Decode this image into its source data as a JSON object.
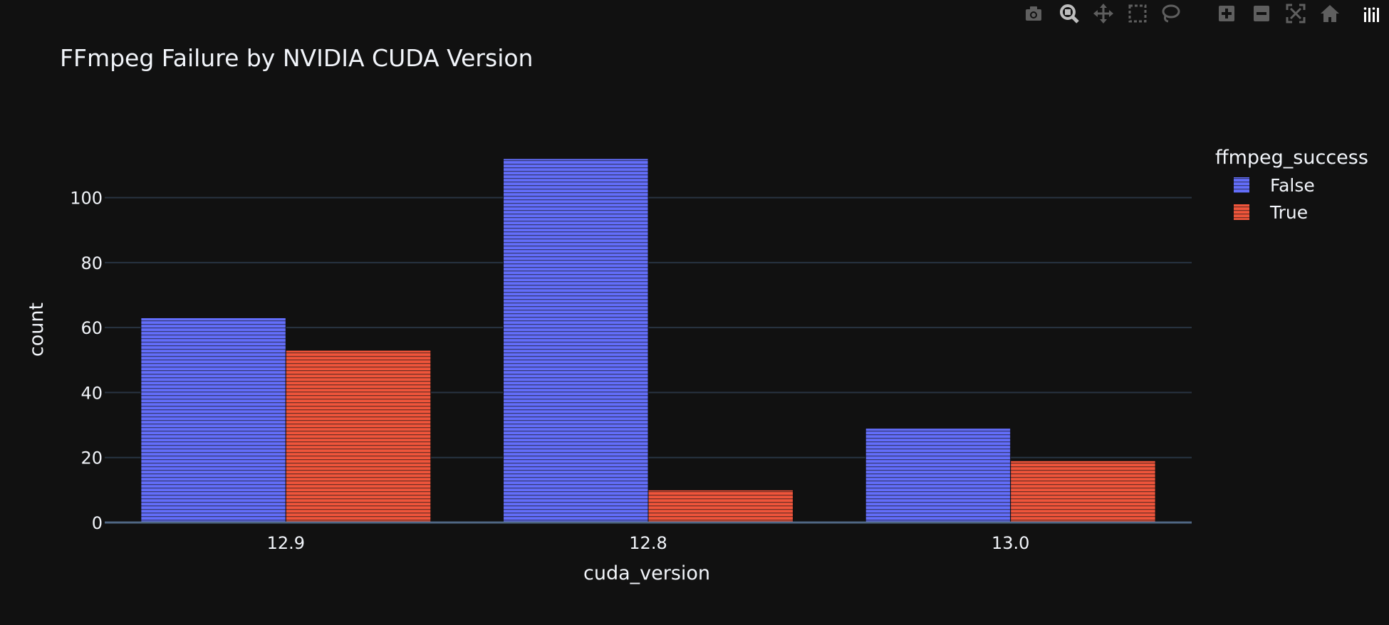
{
  "modebar": {
    "buttons": [
      {
        "name": "camera-icon"
      },
      {
        "name": "zoom-icon"
      },
      {
        "name": "pan-icon"
      },
      {
        "name": "box-select-icon"
      },
      {
        "name": "lasso-select-icon"
      },
      {
        "name": "zoom-in-icon"
      },
      {
        "name": "zoom-out-icon"
      },
      {
        "name": "autoscale-icon"
      },
      {
        "name": "reset-axes-icon"
      },
      {
        "name": "plotly-logo-icon"
      }
    ]
  },
  "colors": {
    "background": "#111111",
    "grid": "#283442",
    "axis_line": "#506784",
    "text": "#f2f5fa",
    "false_series": "#636efa",
    "true_series": "#ef553b",
    "modebar_icon": "#5f5f5f"
  },
  "chart_data": {
    "type": "bar",
    "title": "FFmpeg Failure by NVIDIA CUDA Version",
    "xlabel": "cuda_version",
    "ylabel": "count",
    "categories": [
      "12.9",
      "12.8",
      "13.0"
    ],
    "ylim": [
      0,
      117
    ],
    "yticks": [
      0,
      20,
      40,
      60,
      80,
      100
    ],
    "grid": true,
    "barmode": "group",
    "pattern": "horizontal-lines",
    "legend": {
      "title": "ffmpeg_success",
      "position": "right"
    },
    "series": [
      {
        "name": "False",
        "values": [
          63,
          112,
          29
        ],
        "color": "#636efa"
      },
      {
        "name": "True",
        "values": [
          53,
          10,
          19
        ],
        "color": "#ef553b"
      }
    ]
  }
}
